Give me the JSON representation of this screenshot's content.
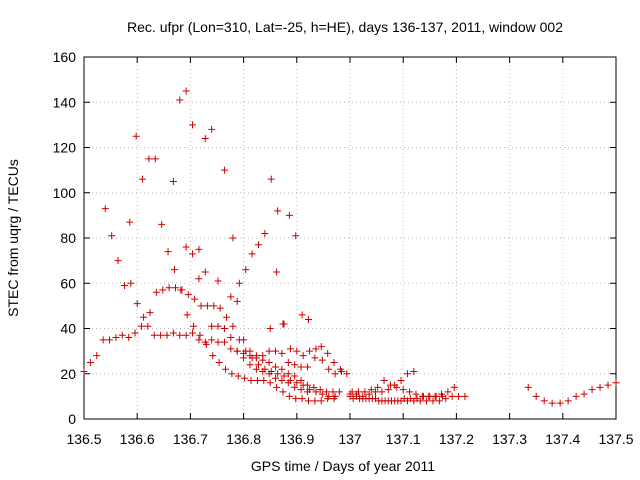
{
  "chart_data": {
    "type": "scatter",
    "title": "Rec. ufpr (Lon=310, Lat=-25, h=HE), days 136-137, 2011, window 002",
    "xlabel": "GPS time / Days of year 2011",
    "ylabel": "STEC from uqrg / TECUs",
    "xlim": [
      136.5,
      137.5
    ],
    "ylim": [
      0,
      160
    ],
    "x_ticks": [
      "136.5",
      "136.6",
      "136.7",
      "136.8",
      "136.9",
      "137",
      "137.1",
      "137.2",
      "137.3",
      "137.4",
      "137.5"
    ],
    "y_ticks": [
      "0",
      "20",
      "40",
      "60",
      "80",
      "100",
      "120",
      "140",
      "160"
    ],
    "grid": true,
    "marker": "plus",
    "color": "#cc0000",
    "points": [
      [
        136.5,
        21
      ],
      [
        136.512,
        25
      ],
      [
        136.524,
        28
      ],
      [
        136.536,
        35
      ],
      [
        136.548,
        35
      ],
      [
        136.56,
        36
      ],
      [
        136.572,
        37
      ],
      [
        136.584,
        36
      ],
      [
        136.596,
        38
      ],
      [
        136.608,
        41
      ],
      [
        136.62,
        41
      ],
      [
        136.632,
        37
      ],
      [
        136.644,
        37
      ],
      [
        136.656,
        37
      ],
      [
        136.668,
        38
      ],
      [
        136.68,
        37
      ],
      [
        136.692,
        37
      ],
      [
        136.704,
        38
      ],
      [
        136.716,
        35
      ],
      [
        136.728,
        34
      ],
      [
        136.74,
        35
      ],
      [
        136.752,
        34
      ],
      [
        136.764,
        34
      ],
      [
        136.776,
        31
      ],
      [
        136.788,
        30
      ],
      [
        136.8,
        29
      ],
      [
        136.812,
        28
      ],
      [
        136.824,
        27
      ],
      [
        136.836,
        26
      ],
      [
        136.848,
        25
      ],
      [
        136.86,
        23
      ],
      [
        136.872,
        22
      ],
      [
        136.884,
        20
      ],
      [
        136.896,
        19
      ],
      [
        136.908,
        17
      ],
      [
        136.92,
        15
      ],
      [
        136.932,
        14
      ],
      [
        136.944,
        13
      ],
      [
        136.956,
        12
      ],
      [
        136.968,
        12
      ],
      [
        136.98,
        12
      ],
      [
        136.54,
        93
      ],
      [
        136.552,
        81
      ],
      [
        136.564,
        70
      ],
      [
        136.576,
        59
      ],
      [
        136.588,
        60
      ],
      [
        136.6,
        51
      ],
      [
        136.612,
        45
      ],
      [
        136.624,
        47
      ],
      [
        136.636,
        56
      ],
      [
        136.648,
        57
      ],
      [
        136.66,
        58
      ],
      [
        136.672,
        58
      ],
      [
        136.684,
        57
      ],
      [
        136.696,
        55
      ],
      [
        136.708,
        53
      ],
      [
        136.72,
        50
      ],
      [
        136.732,
        50
      ],
      [
        136.744,
        50
      ],
      [
        136.756,
        49
      ],
      [
        136.768,
        45
      ],
      [
        136.78,
        41
      ],
      [
        136.792,
        35
      ],
      [
        136.804,
        30
      ],
      [
        136.816,
        27
      ],
      [
        136.828,
        24
      ],
      [
        136.84,
        22
      ],
      [
        136.852,
        21
      ],
      [
        136.864,
        20
      ],
      [
        136.876,
        19
      ],
      [
        136.888,
        17
      ],
      [
        136.9,
        16
      ],
      [
        136.912,
        15
      ],
      [
        136.924,
        13
      ],
      [
        136.936,
        12
      ],
      [
        136.948,
        11
      ],
      [
        136.96,
        10
      ],
      [
        136.972,
        10
      ],
      [
        136.586,
        87
      ],
      [
        136.598,
        125
      ],
      [
        136.61,
        106
      ],
      [
        136.622,
        115
      ],
      [
        136.634,
        115
      ],
      [
        136.646,
        86
      ],
      [
        136.658,
        74
      ],
      [
        136.67,
        66
      ],
      [
        136.682,
        57
      ],
      [
        136.694,
        46
      ],
      [
        136.706,
        41
      ],
      [
        136.718,
        37
      ],
      [
        136.73,
        33
      ],
      [
        136.742,
        28
      ],
      [
        136.754,
        25
      ],
      [
        136.766,
        22
      ],
      [
        136.778,
        20
      ],
      [
        136.79,
        19
      ],
      [
        136.802,
        18
      ],
      [
        136.814,
        17
      ],
      [
        136.826,
        17
      ],
      [
        136.838,
        17
      ],
      [
        136.85,
        16
      ],
      [
        136.862,
        14
      ],
      [
        136.874,
        12
      ],
      [
        136.886,
        10
      ],
      [
        136.898,
        9
      ],
      [
        136.91,
        9
      ],
      [
        136.922,
        8
      ],
      [
        136.934,
        8
      ],
      [
        136.946,
        8
      ],
      [
        136.958,
        9
      ],
      [
        136.97,
        9
      ],
      [
        136.668,
        105
      ],
      [
        136.68,
        141
      ],
      [
        136.692,
        145
      ],
      [
        136.704,
        130
      ],
      [
        136.716,
        75
      ],
      [
        136.728,
        65
      ],
      [
        136.74,
        41
      ],
      [
        136.752,
        41
      ],
      [
        136.764,
        40
      ],
      [
        136.776,
        36
      ],
      [
        136.788,
        30
      ],
      [
        136.8,
        27
      ],
      [
        136.812,
        24
      ],
      [
        136.824,
        22
      ],
      [
        136.836,
        21
      ],
      [
        136.848,
        20
      ],
      [
        136.86,
        18
      ],
      [
        136.872,
        17
      ],
      [
        136.884,
        16
      ],
      [
        136.896,
        14
      ],
      [
        136.908,
        13
      ],
      [
        136.92,
        12
      ],
      [
        136.692,
        76
      ],
      [
        136.704,
        73
      ],
      [
        136.716,
        62
      ],
      [
        136.728,
        124
      ],
      [
        136.74,
        128
      ],
      [
        136.752,
        61
      ],
      [
        136.764,
        110
      ],
      [
        136.776,
        54
      ],
      [
        136.788,
        52
      ],
      [
        136.8,
        35
      ],
      [
        136.812,
        30
      ],
      [
        136.824,
        28
      ],
      [
        136.836,
        28
      ],
      [
        136.848,
        30
      ],
      [
        136.86,
        30
      ],
      [
        136.872,
        29
      ],
      [
        136.884,
        25
      ],
      [
        136.896,
        24
      ],
      [
        136.908,
        23
      ],
      [
        136.92,
        23
      ],
      [
        136.78,
        80
      ],
      [
        136.792,
        60
      ],
      [
        136.804,
        66
      ],
      [
        136.816,
        73
      ],
      [
        136.828,
        77
      ],
      [
        136.84,
        82
      ],
      [
        136.852,
        106
      ],
      [
        136.864,
        92
      ],
      [
        136.876,
        42
      ],
      [
        136.888,
        31
      ],
      [
        136.9,
        30
      ],
      [
        136.912,
        28
      ],
      [
        136.924,
        30
      ],
      [
        136.936,
        31
      ],
      [
        136.948,
        26
      ],
      [
        136.96,
        22
      ],
      [
        136.972,
        20
      ],
      [
        136.984,
        21
      ],
      [
        136.85,
        40
      ],
      [
        136.862,
        65
      ],
      [
        136.874,
        42
      ],
      [
        136.886,
        90
      ],
      [
        136.898,
        81
      ],
      [
        136.91,
        46
      ],
      [
        136.922,
        44
      ],
      [
        136.934,
        27
      ],
      [
        136.946,
        32
      ],
      [
        136.958,
        29
      ],
      [
        136.97,
        25
      ],
      [
        136.982,
        22
      ],
      [
        136.994,
        20
      ],
      [
        137.0,
        11
      ],
      [
        137.012,
        11
      ],
      [
        137.024,
        10
      ],
      [
        137.036,
        11
      ],
      [
        137.048,
        12
      ],
      [
        137.06,
        12
      ],
      [
        137.072,
        13
      ],
      [
        137.084,
        15
      ],
      [
        137.096,
        17
      ],
      [
        137.108,
        20
      ],
      [
        137.12,
        21
      ],
      [
        137.0,
        10
      ],
      [
        137.012,
        10
      ],
      [
        137.024,
        9
      ],
      [
        137.036,
        9
      ],
      [
        137.048,
        9
      ],
      [
        137.06,
        8
      ],
      [
        137.072,
        8
      ],
      [
        137.084,
        8
      ],
      [
        137.096,
        8
      ],
      [
        137.108,
        8
      ],
      [
        137.12,
        8
      ],
      [
        137.132,
        8
      ],
      [
        137.144,
        8
      ],
      [
        137.156,
        8
      ],
      [
        137.168,
        8
      ],
      [
        137.18,
        9
      ],
      [
        137.192,
        10
      ],
      [
        137.204,
        10
      ],
      [
        137.216,
        10
      ],
      [
        137.004,
        12
      ],
      [
        137.016,
        12
      ],
      [
        137.028,
        12
      ],
      [
        137.04,
        13
      ],
      [
        137.052,
        14
      ],
      [
        137.064,
        17
      ],
      [
        137.076,
        15
      ],
      [
        137.088,
        14
      ],
      [
        137.1,
        13
      ],
      [
        137.112,
        12
      ],
      [
        137.124,
        11
      ],
      [
        137.136,
        10
      ],
      [
        137.148,
        10
      ],
      [
        137.16,
        10
      ],
      [
        137.172,
        11
      ],
      [
        137.184,
        12
      ],
      [
        137.196,
        14
      ],
      [
        137.006,
        9
      ],
      [
        137.018,
        9
      ],
      [
        137.03,
        9
      ],
      [
        137.042,
        9
      ],
      [
        137.054,
        8
      ],
      [
        137.066,
        8
      ],
      [
        137.078,
        8
      ],
      [
        137.09,
        8
      ],
      [
        137.102,
        9
      ],
      [
        137.114,
        9
      ],
      [
        137.126,
        9
      ],
      [
        137.138,
        10
      ],
      [
        137.15,
        10
      ],
      [
        137.162,
        10
      ],
      [
        137.174,
        10
      ],
      [
        137.335,
        14
      ],
      [
        137.35,
        10
      ],
      [
        137.365,
        8
      ],
      [
        137.38,
        7
      ],
      [
        137.395,
        7
      ],
      [
        137.41,
        8
      ],
      [
        137.425,
        10
      ],
      [
        137.44,
        11
      ],
      [
        137.455,
        13
      ],
      [
        137.47,
        14
      ],
      [
        137.485,
        15
      ],
      [
        137.5,
        16
      ]
    ]
  }
}
